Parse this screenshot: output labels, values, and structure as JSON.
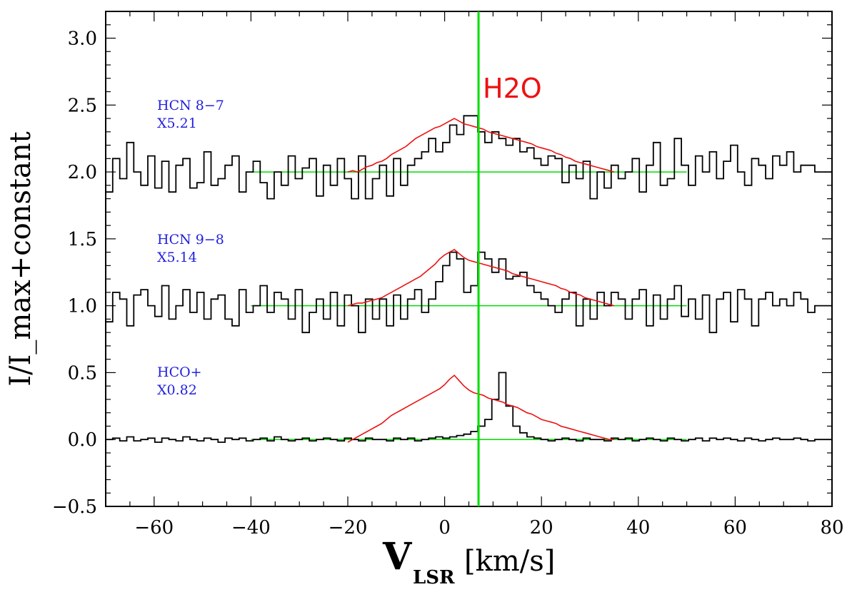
{
  "chart_data": {
    "type": "line",
    "title": "",
    "xlabel_main": "V",
    "xlabel_sub": "LSR",
    "xlabel_unit": "[km/s]",
    "ylabel": "I/I_max+constant",
    "xlim": [
      -70,
      80
    ],
    "ylim": [
      -0.5,
      3.2
    ],
    "xticks": [
      -60,
      -40,
      -20,
      0,
      20,
      40,
      60,
      80
    ],
    "xtick_labels": [
      "−60",
      "−40",
      "−20",
      "0",
      "20",
      "40",
      "60",
      "80"
    ],
    "yticks": [
      -0.5,
      0.0,
      0.5,
      1.0,
      1.5,
      2.0,
      2.5,
      3.0
    ],
    "ytick_labels": [
      "−0.5",
      "0.0",
      "0.5",
      "1.0",
      "1.5",
      "2.0",
      "2.5",
      "3.0"
    ],
    "reference_line": {
      "label": "H2O",
      "x": 7.0,
      "color": "#00dd00"
    },
    "baselines": [
      {
        "y": 2.0,
        "x_range": [
          -40,
          50
        ]
      },
      {
        "y": 1.0,
        "x_range": [
          -40,
          50
        ]
      },
      {
        "y": 0.0,
        "x_range": [
          -40,
          50
        ]
      }
    ],
    "panels": [
      {
        "name": "HCN 8-7",
        "label_line1": "HCN 8−7",
        "label_line2": "X5.21",
        "offset": 2.0,
        "black_step": {
          "x_start": -70,
          "x_step": 1.45,
          "values": [
            -0.15,
            0.1,
            -0.05,
            0.22,
            0.0,
            -0.1,
            0.12,
            -0.12,
            0.08,
            -0.15,
            0.05,
            0.1,
            -0.12,
            -0.08,
            0.15,
            -0.1,
            -0.05,
            0.05,
            0.12,
            -0.15,
            0.0,
            0.08,
            -0.08,
            -0.2,
            0.0,
            -0.1,
            0.12,
            -0.05,
            0.03,
            0.1,
            -0.18,
            0.05,
            -0.1,
            0.1,
            -0.05,
            -0.2,
            0.12,
            -0.2,
            -0.05,
            0.05,
            -0.18,
            0.1,
            -0.1,
            0.05,
            0.1,
            0.15,
            0.25,
            0.15,
            0.22,
            0.35,
            0.28,
            0.42,
            0.42,
            0.3,
            0.22,
            0.3,
            0.25,
            0.2,
            0.25,
            0.15,
            0.18,
            0.1,
            0.05,
            0.12,
            0.1,
            -0.08,
            0.05,
            -0.05,
            0.08,
            -0.2,
            0.0,
            -0.12,
            0.05,
            -0.05,
            0.0,
            0.1,
            -0.15,
            0.05,
            0.22,
            -0.1,
            -0.05,
            0.25,
            0.05,
            -0.1,
            0.12,
            0.0,
            0.15,
            -0.05,
            0.08,
            0.2,
            0.0,
            -0.1,
            0.1,
            0.05,
            -0.05,
            0.12,
            0.05,
            0.15,
            0.0,
            0.05,
            0.05,
            0.0,
            0.0,
            0.0
          ]
        },
        "red_line": {
          "x_start": -20,
          "x_step": 1.0,
          "values": [
            0.0,
            0.01,
            0.0,
            0.02,
            0.04,
            0.05,
            0.07,
            0.08,
            0.1,
            0.13,
            0.15,
            0.17,
            0.19,
            0.22,
            0.25,
            0.27,
            0.29,
            0.31,
            0.33,
            0.34,
            0.36,
            0.38,
            0.4,
            0.38,
            0.36,
            0.35,
            0.34,
            0.33,
            0.32,
            0.3,
            0.29,
            0.28,
            0.27,
            0.26,
            0.25,
            0.24,
            0.23,
            0.22,
            0.21,
            0.19,
            0.18,
            0.17,
            0.16,
            0.14,
            0.13,
            0.11,
            0.1,
            0.08,
            0.07,
            0.06,
            0.05,
            0.04,
            0.03,
            0.02,
            0.01,
            0.0
          ]
        }
      },
      {
        "name": "HCN 9-8",
        "label_line1": "HCN 9−8",
        "label_line2": "X5.14",
        "offset": 1.0,
        "black_step": {
          "x_start": -70,
          "x_step": 1.45,
          "values": [
            -0.12,
            0.1,
            0.05,
            -0.15,
            0.08,
            0.12,
            0.0,
            -0.08,
            0.15,
            -0.1,
            0.0,
            0.12,
            -0.05,
            0.1,
            -0.1,
            0.05,
            0.08,
            -0.1,
            -0.15,
            0.12,
            -0.05,
            0.0,
            0.15,
            -0.05,
            0.1,
            0.05,
            -0.1,
            0.12,
            -0.2,
            -0.05,
            0.05,
            -0.1,
            0.1,
            -0.15,
            0.08,
            0.0,
            -0.2,
            0.05,
            -0.1,
            0.05,
            -0.15,
            0.08,
            -0.1,
            0.05,
            0.12,
            -0.05,
            0.05,
            0.18,
            0.3,
            0.4,
            0.35,
            0.1,
            0.15,
            0.4,
            0.35,
            0.25,
            0.35,
            0.2,
            0.22,
            0.25,
            0.15,
            0.1,
            0.05,
            0.0,
            -0.05,
            0.05,
            0.1,
            -0.15,
            0.05,
            -0.1,
            0.1,
            0.0,
            0.1,
            0.05,
            -0.1,
            0.05,
            0.12,
            -0.15,
            0.08,
            -0.1,
            0.05,
            0.15,
            -0.08,
            0.05,
            -0.1,
            0.08,
            -0.2,
            0.05,
            0.1,
            -0.12,
            0.12,
            0.05,
            -0.15,
            0.05,
            0.1,
            0.0,
            0.05,
            0.0,
            0.1,
            0.05,
            -0.05,
            0.0,
            0.0,
            0.0
          ]
        },
        "red_line": {
          "x_start": -20,
          "x_step": 1.0,
          "values": [
            0.0,
            0.01,
            0.02,
            0.02,
            0.03,
            0.04,
            0.05,
            0.06,
            0.08,
            0.1,
            0.12,
            0.14,
            0.16,
            0.18,
            0.2,
            0.22,
            0.25,
            0.28,
            0.31,
            0.35,
            0.38,
            0.4,
            0.42,
            0.39,
            0.36,
            0.34,
            0.33,
            0.32,
            0.31,
            0.3,
            0.29,
            0.28,
            0.27,
            0.26,
            0.24,
            0.23,
            0.22,
            0.21,
            0.2,
            0.19,
            0.18,
            0.17,
            0.16,
            0.15,
            0.13,
            0.12,
            0.1,
            0.09,
            0.08,
            0.06,
            0.05,
            0.04,
            0.03,
            0.02,
            0.01,
            0.0
          ]
        }
      },
      {
        "name": "HCO+",
        "label_line1": "HCO+",
        "label_line2": "X0.82",
        "offset": 0.0,
        "black_step": {
          "x_start": -70,
          "x_step": 1.45,
          "values": [
            0.0,
            0.01,
            -0.01,
            0.02,
            -0.01,
            0.0,
            0.01,
            -0.02,
            0.01,
            0.0,
            -0.01,
            0.02,
            0.0,
            -0.01,
            0.01,
            0.0,
            -0.02,
            0.01,
            0.0,
            0.01,
            -0.01,
            0.0,
            0.01,
            -0.01,
            0.02,
            0.0,
            -0.01,
            0.0,
            0.01,
            -0.01,
            0.0,
            0.01,
            0.0,
            -0.01,
            0.01,
            0.0,
            -0.01,
            0.01,
            0.0,
            0.0,
            -0.01,
            0.01,
            0.0,
            0.01,
            -0.01,
            0.0,
            0.01,
            0.02,
            0.01,
            0.02,
            0.03,
            0.04,
            0.06,
            0.1,
            0.15,
            0.3,
            0.5,
            0.25,
            0.1,
            0.05,
            0.02,
            0.01,
            0.0,
            -0.01,
            0.0,
            0.01,
            0.0,
            -0.01,
            0.01,
            0.0,
            0.0,
            -0.01,
            0.01,
            0.0,
            0.01,
            -0.01,
            0.0,
            0.01,
            0.0,
            -0.01,
            0.01,
            0.0,
            -0.01,
            0.0,
            0.01,
            -0.01,
            0.01,
            0.0,
            0.01,
            0.0,
            -0.01,
            0.01,
            0.0,
            -0.01,
            0.0,
            0.01,
            0.0,
            0.0,
            0.01,
            0.0,
            -0.01,
            0.0,
            0.0,
            0.0
          ]
        },
        "red_line": {
          "x_start": -20,
          "x_step": 1.0,
          "values": [
            -0.02,
            0.0,
            0.02,
            0.04,
            0.06,
            0.08,
            0.1,
            0.12,
            0.15,
            0.18,
            0.2,
            0.22,
            0.24,
            0.26,
            0.28,
            0.3,
            0.32,
            0.34,
            0.36,
            0.38,
            0.41,
            0.45,
            0.48,
            0.44,
            0.4,
            0.37,
            0.35,
            0.34,
            0.33,
            0.31,
            0.3,
            0.29,
            0.28,
            0.26,
            0.25,
            0.24,
            0.22,
            0.2,
            0.19,
            0.17,
            0.15,
            0.14,
            0.13,
            0.12,
            0.1,
            0.09,
            0.08,
            0.07,
            0.06,
            0.05,
            0.04,
            0.03,
            0.02,
            0.01,
            0.0,
            0.0
          ]
        }
      }
    ]
  }
}
